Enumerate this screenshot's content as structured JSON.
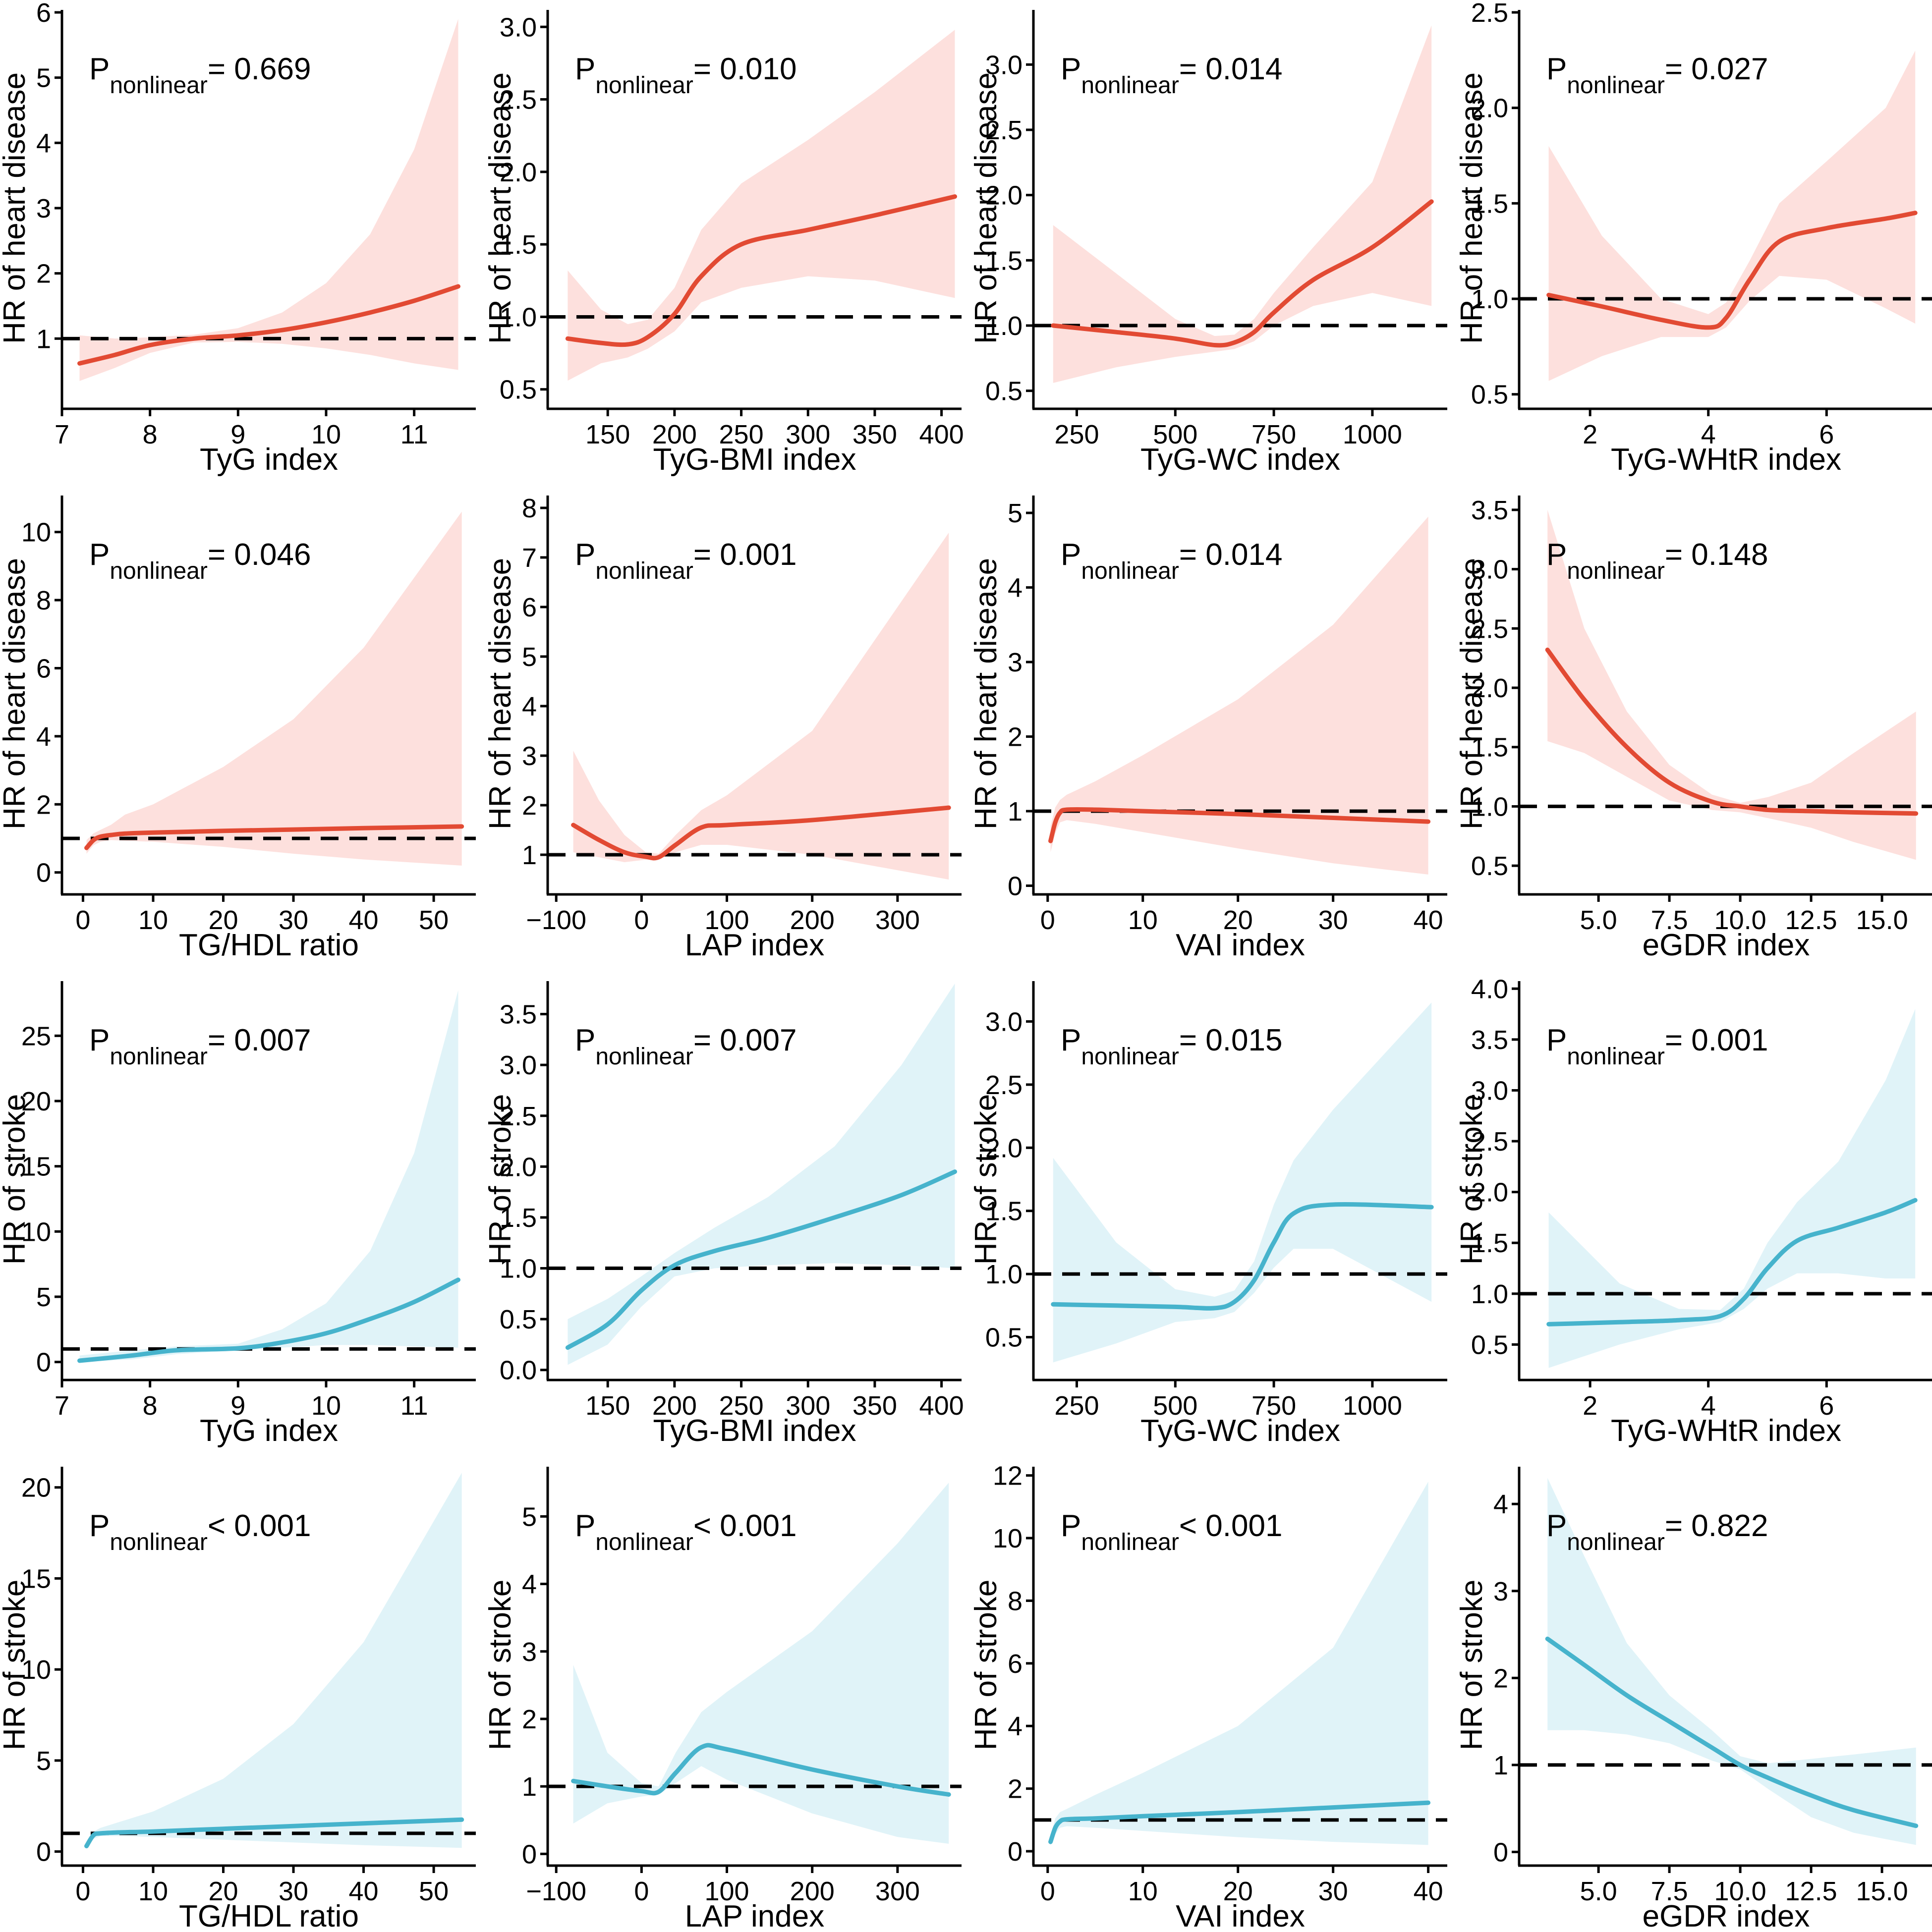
{
  "colors": {
    "heart_line": "#e24a33",
    "heart_band": "#fde0dd",
    "stroke_line": "#46b3cc",
    "stroke_band": "#e0f3f8",
    "axis": "#000000",
    "reference": "#000000"
  },
  "chart_data": [
    {
      "type": "line",
      "title": "",
      "outcome": "heart",
      "xlabel": "TyG index",
      "ylabel": "HR of heart disease",
      "p_label": "P",
      "p_sub": "nonlinear",
      "p_value": "=  0.669",
      "xlim": [
        7,
        11.7
      ],
      "ylim": [
        0,
        6
      ],
      "xticks": [
        7,
        8,
        9,
        10,
        11
      ],
      "yticks": [
        1,
        2,
        3,
        4,
        5,
        6
      ],
      "ref": 1,
      "x": [
        7.2,
        7.6,
        8.0,
        8.5,
        9.0,
        9.5,
        10.0,
        10.5,
        11.0,
        11.5
      ],
      "y": [
        0.62,
        0.75,
        0.9,
        1.0,
        1.05,
        1.13,
        1.25,
        1.4,
        1.58,
        1.8
      ],
      "lower": [
        0.35,
        0.55,
        0.78,
        0.94,
        0.95,
        0.92,
        0.85,
        0.75,
        0.62,
        0.52
      ],
      "upper": [
        1.05,
        1.0,
        1.02,
        1.06,
        1.16,
        1.4,
        1.85,
        2.6,
        3.9,
        5.9
      ]
    },
    {
      "type": "line",
      "title": "",
      "outcome": "heart",
      "xlabel": "TyG-BMI index",
      "ylabel": "HR of heart disease",
      "p_label": "P",
      "p_sub": "nonlinear",
      "p_value": "= 0.010",
      "xlim": [
        105,
        415
      ],
      "ylim": [
        0.4,
        3.1
      ],
      "xticks": [
        150,
        200,
        250,
        300,
        350,
        400
      ],
      "ytick_labels": [
        "0.5",
        "1.0",
        "1.5",
        "2.0",
        "2.5",
        "3.0"
      ],
      "yticks": [
        0.5,
        1.0,
        1.5,
        2.0,
        2.5,
        3.0
      ],
      "ref": 1,
      "x": [
        120,
        145,
        165,
        180,
        200,
        220,
        250,
        300,
        350,
        410
      ],
      "y": [
        0.85,
        0.82,
        0.81,
        0.86,
        1.02,
        1.28,
        1.5,
        1.6,
        1.7,
        1.83
      ],
      "lower": [
        0.56,
        0.68,
        0.72,
        0.78,
        0.9,
        1.1,
        1.2,
        1.28,
        1.25,
        1.13
      ],
      "upper": [
        1.32,
        1.05,
        0.95,
        0.98,
        1.2,
        1.6,
        1.92,
        2.22,
        2.55,
        2.98
      ]
    },
    {
      "type": "line",
      "title": "",
      "outcome": "heart",
      "xlabel": "TyG-WC index",
      "ylabel": "HR of heart disease",
      "p_label": "P",
      "p_sub": "nonlinear",
      "p_value": "= 0.014",
      "xlim": [
        140,
        1190
      ],
      "ylim": [
        0.4,
        3.4
      ],
      "xticks": [
        250,
        500,
        750,
        1000
      ],
      "ytick_labels": [
        "0.5",
        "1.0",
        "1.5",
        "2.0",
        "2.5",
        "3.0"
      ],
      "yticks": [
        0.5,
        1.0,
        1.5,
        2.0,
        2.5,
        3.0
      ],
      "ref": 1,
      "x": [
        190,
        350,
        500,
        600,
        650,
        700,
        750,
        850,
        1000,
        1150
      ],
      "y": [
        1.0,
        0.95,
        0.9,
        0.85,
        0.87,
        0.95,
        1.1,
        1.35,
        1.6,
        1.95
      ],
      "lower": [
        0.56,
        0.68,
        0.76,
        0.8,
        0.82,
        0.88,
        1.0,
        1.15,
        1.25,
        1.15
      ],
      "upper": [
        1.77,
        1.4,
        1.05,
        0.92,
        0.93,
        1.05,
        1.25,
        1.6,
        2.1,
        3.3
      ]
    },
    {
      "type": "line",
      "title": "",
      "outcome": "heart",
      "xlabel": "TyG-WHtR index",
      "ylabel": "HR of heart disease",
      "p_label": "P",
      "p_sub": "nonlinear",
      "p_value": "= 0.027",
      "xlim": [
        0.8,
        7.8
      ],
      "ylim": [
        0.45,
        2.5
      ],
      "xticks": [
        2,
        4,
        6
      ],
      "ytick_labels": [
        "0.5",
        "1.0",
        "1.5",
        "2.0",
        "2.5"
      ],
      "yticks": [
        0.5,
        1.0,
        1.5,
        2.0,
        2.5
      ],
      "ref": 1,
      "x": [
        1.3,
        2.2,
        3.2,
        4.0,
        4.3,
        4.7,
        5.2,
        6.0,
        7.0,
        7.5
      ],
      "y": [
        1.02,
        0.96,
        0.89,
        0.85,
        0.9,
        1.1,
        1.3,
        1.37,
        1.42,
        1.45
      ],
      "lower": [
        0.57,
        0.7,
        0.8,
        0.8,
        0.85,
        0.99,
        1.12,
        1.1,
        0.95,
        0.87
      ],
      "upper": [
        1.8,
        1.33,
        1.0,
        0.92,
        0.98,
        1.2,
        1.5,
        1.72,
        2.0,
        2.3
      ]
    },
    {
      "type": "line",
      "title": "",
      "outcome": "heart",
      "xlabel": "TG/HDL ratio",
      "ylabel": "HR of heart disease",
      "p_label": "P",
      "p_sub": "nonlinear",
      "p_value": "= 0.046",
      "xlim": [
        -3,
        56
      ],
      "ylim": [
        -0.5,
        11
      ],
      "xticks": [
        0,
        10,
        20,
        30,
        40,
        50
      ],
      "yticks": [
        0,
        2,
        4,
        6,
        8,
        10
      ],
      "ref": 1,
      "x": [
        0.5,
        1.5,
        2.5,
        4,
        6,
        10,
        20,
        30,
        40,
        54
      ],
      "y": [
        0.72,
        0.95,
        1.05,
        1.1,
        1.14,
        1.17,
        1.22,
        1.26,
        1.3,
        1.35
      ],
      "lower": [
        0.55,
        0.8,
        0.9,
        0.95,
        0.93,
        0.9,
        0.75,
        0.55,
        0.38,
        0.2
      ],
      "upper": [
        0.95,
        1.15,
        1.25,
        1.4,
        1.7,
        2.0,
        3.1,
        4.5,
        6.6,
        10.6
      ]
    },
    {
      "type": "line",
      "title": "",
      "outcome": "heart",
      "xlabel": "LAP index",
      "ylabel": "HR of heart disease",
      "p_label": "P",
      "p_sub": "nonlinear",
      "p_value": "= 0.001",
      "xlim": [
        -110,
        375
      ],
      "ylim": [
        0.3,
        8.2
      ],
      "xticks": [
        -100,
        0,
        100,
        200,
        300
      ],
      "xtick_labels": [
        "−100",
        "0",
        "100",
        "200",
        "300"
      ],
      "yticks": [
        1,
        2,
        3,
        4,
        5,
        6,
        7,
        8
      ],
      "ref": 1,
      "x": [
        -80,
        -50,
        -20,
        5,
        20,
        40,
        70,
        100,
        200,
        360
      ],
      "y": [
        1.6,
        1.3,
        1.05,
        0.96,
        0.95,
        1.2,
        1.55,
        1.6,
        1.7,
        1.95
      ],
      "lower": [
        1.05,
        0.95,
        0.85,
        0.9,
        0.91,
        1.05,
        1.2,
        1.2,
        1.0,
        0.5
      ],
      "upper": [
        3.1,
        2.1,
        1.4,
        1.05,
        1.02,
        1.4,
        1.9,
        2.2,
        3.5,
        7.5
      ]
    },
    {
      "type": "line",
      "title": "",
      "outcome": "heart",
      "xlabel": "VAI index",
      "ylabel": "HR of heart disease",
      "p_label": "P",
      "p_sub": "nonlinear",
      "p_value": "= 0.014",
      "xlim": [
        -1.5,
        42
      ],
      "ylim": [
        -0.05,
        5.2
      ],
      "xticks": [
        0,
        10,
        20,
        30,
        40
      ],
      "yticks": [
        0,
        1,
        2,
        3,
        4,
        5
      ],
      "ref": 1,
      "x": [
        0.3,
        0.8,
        1.3,
        2,
        5,
        10,
        20,
        30,
        40
      ],
      "y": [
        0.6,
        0.85,
        0.98,
        1.02,
        1.02,
        1.0,
        0.96,
        0.91,
        0.86
      ],
      "lower": [
        0.45,
        0.7,
        0.85,
        0.88,
        0.83,
        0.72,
        0.5,
        0.3,
        0.15
      ],
      "upper": [
        0.8,
        1.05,
        1.15,
        1.22,
        1.4,
        1.75,
        2.5,
        3.5,
        4.95
      ]
    },
    {
      "type": "line",
      "title": "",
      "outcome": "heart",
      "xlabel": "eGDR index",
      "ylabel": "HR of heart disease",
      "p_label": "P",
      "p_sub": "nonlinear",
      "p_value": "= 0.148",
      "xlim": [
        2.2,
        16.8
      ],
      "ylim": [
        0.3,
        3.6
      ],
      "xticks": [
        5.0,
        7.5,
        10.0,
        12.5,
        15.0
      ],
      "xtick_labels": [
        "5.0",
        "7.5",
        "10.0",
        "12.5",
        "15.0"
      ],
      "ytick_labels": [
        "0.5",
        "1.0",
        "1.5",
        "2.0",
        "2.5",
        "3.0",
        "3.5"
      ],
      "yticks": [
        0.5,
        1.0,
        1.5,
        2.0,
        2.5,
        3.0,
        3.5
      ],
      "ref": 1,
      "x": [
        3.2,
        4.5,
        6.0,
        7.5,
        9.0,
        10.0,
        11.0,
        12.5,
        14.0,
        16.2
      ],
      "y": [
        2.32,
        1.9,
        1.5,
        1.2,
        1.04,
        1.0,
        0.97,
        0.96,
        0.95,
        0.94
      ],
      "lower": [
        1.55,
        1.45,
        1.25,
        1.05,
        0.97,
        0.95,
        0.9,
        0.82,
        0.7,
        0.55
      ],
      "upper": [
        3.5,
        2.5,
        1.8,
        1.35,
        1.1,
        1.03,
        1.08,
        1.2,
        1.45,
        1.8
      ]
    },
    {
      "type": "line",
      "title": "",
      "outcome": "stroke",
      "xlabel": "TyG index",
      "ylabel": "HR of stroke",
      "p_label": "P",
      "p_sub": "nonlinear",
      "p_value": "= 0.007",
      "xlim": [
        7,
        11.7
      ],
      "ylim": [
        -1,
        29
      ],
      "xticks": [
        7,
        8,
        9,
        10,
        11
      ],
      "yticks": [
        0,
        5,
        10,
        15,
        20,
        25
      ],
      "ref": 1,
      "x": [
        7.2,
        7.8,
        8.3,
        9.0,
        9.5,
        10.0,
        10.5,
        11.0,
        11.5
      ],
      "y": [
        0.1,
        0.5,
        0.9,
        1.05,
        1.5,
        2.2,
        3.3,
        4.6,
        6.3
      ],
      "lower": [
        0.0,
        0.2,
        0.6,
        0.9,
        1.1,
        1.3,
        1.3,
        1.2,
        1.1
      ],
      "upper": [
        0.5,
        0.9,
        1.2,
        1.4,
        2.5,
        4.5,
        8.5,
        16,
        28.5
      ]
    },
    {
      "type": "line",
      "title": "",
      "outcome": "stroke",
      "xlabel": "TyG-BMI index",
      "ylabel": "HR of stroke",
      "p_label": "P",
      "p_sub": "nonlinear",
      "p_value": "= 0.007",
      "xlim": [
        105,
        415
      ],
      "ylim": [
        -0.05,
        3.8
      ],
      "xticks": [
        150,
        200,
        250,
        300,
        350,
        400
      ],
      "ytick_labels": [
        "0.0",
        "0.5",
        "1.0",
        "1.5",
        "2.0",
        "2.5",
        "3.0",
        "3.5"
      ],
      "yticks": [
        0,
        0.5,
        1.0,
        1.5,
        2.0,
        2.5,
        3.0,
        3.5
      ],
      "ref": 1,
      "x": [
        120,
        150,
        175,
        200,
        230,
        270,
        320,
        370,
        410
      ],
      "y": [
        0.22,
        0.45,
        0.78,
        1.03,
        1.17,
        1.3,
        1.5,
        1.72,
        1.95
      ],
      "lower": [
        0.05,
        0.25,
        0.62,
        0.92,
        1.0,
        1.03,
        1.05,
        1.03,
        1.0
      ],
      "upper": [
        0.5,
        0.7,
        0.92,
        1.15,
        1.4,
        1.7,
        2.2,
        3.0,
        3.8
      ]
    },
    {
      "type": "line",
      "title": "",
      "outcome": "stroke",
      "xlabel": "TyG-WC index",
      "ylabel": "HR of stroke",
      "p_label": "P",
      "p_sub": "nonlinear",
      "p_value": "=  0.015",
      "xlim": [
        140,
        1190
      ],
      "ylim": [
        0.2,
        3.3
      ],
      "xticks": [
        250,
        500,
        750,
        1000
      ],
      "ytick_labels": [
        "0.5",
        "1.0",
        "1.5",
        "2.0",
        "2.5",
        "3.0"
      ],
      "yticks": [
        0.5,
        1.0,
        1.5,
        2.0,
        2.5,
        3.0
      ],
      "ref": 1,
      "x": [
        190,
        350,
        500,
        600,
        650,
        700,
        750,
        800,
        900,
        1150
      ],
      "y": [
        0.76,
        0.75,
        0.74,
        0.73,
        0.78,
        0.95,
        1.25,
        1.48,
        1.55,
        1.53
      ],
      "lower": [
        0.3,
        0.45,
        0.62,
        0.65,
        0.7,
        0.85,
        1.05,
        1.2,
        1.2,
        0.78
      ],
      "upper": [
        1.92,
        1.25,
        0.88,
        0.82,
        0.87,
        1.1,
        1.55,
        1.9,
        2.3,
        3.15
      ]
    },
    {
      "type": "line",
      "title": "",
      "outcome": "stroke",
      "xlabel": "TyG-WHtR index",
      "ylabel": "HR of stroke",
      "p_label": "P",
      "p_sub": "nonlinear",
      "p_value": "= 0.001",
      "xlim": [
        0.8,
        7.8
      ],
      "ylim": [
        0.2,
        4.05
      ],
      "xticks": [
        2,
        4,
        6
      ],
      "ytick_labels": [
        "0.5",
        "1.0",
        "1.5",
        "2.0",
        "2.5",
        "3.0",
        "3.5",
        "4.0"
      ],
      "yticks": [
        0.5,
        1.0,
        1.5,
        2.0,
        2.5,
        3.0,
        3.5,
        4.0
      ],
      "ref": 1,
      "x": [
        1.3,
        2.5,
        3.5,
        4.2,
        4.6,
        5.0,
        5.5,
        6.2,
        7.0,
        7.5
      ],
      "y": [
        0.7,
        0.72,
        0.74,
        0.78,
        0.95,
        1.25,
        1.52,
        1.65,
        1.8,
        1.92
      ],
      "lower": [
        0.27,
        0.5,
        0.65,
        0.72,
        0.85,
        1.05,
        1.2,
        1.2,
        1.15,
        1.15
      ],
      "upper": [
        1.8,
        1.1,
        0.85,
        0.84,
        1.05,
        1.5,
        1.9,
        2.3,
        3.1,
        3.8
      ]
    },
    {
      "type": "line",
      "title": "",
      "outcome": "stroke",
      "xlabel": "TG/HDL ratio",
      "ylabel": "HR of stroke",
      "p_label": "P",
      "p_sub": "nonlinear",
      "p_value": "< 0.001",
      "xlim": [
        -3,
        56
      ],
      "ylim": [
        -0.5,
        21
      ],
      "xticks": [
        0,
        10,
        20,
        30,
        40,
        50
      ],
      "yticks": [
        0,
        5,
        10,
        15,
        20
      ],
      "ref": 1,
      "x": [
        0.5,
        1.5,
        2.5,
        5,
        10,
        20,
        30,
        40,
        54
      ],
      "y": [
        0.3,
        0.9,
        1.0,
        1.05,
        1.1,
        1.25,
        1.4,
        1.55,
        1.75
      ],
      "lower": [
        0.2,
        0.7,
        0.85,
        0.85,
        0.8,
        0.65,
        0.5,
        0.35,
        0.2
      ],
      "upper": [
        0.5,
        1.1,
        1.3,
        1.6,
        2.2,
        4.0,
        7.0,
        11.5,
        20.8
      ]
    },
    {
      "type": "line",
      "title": "",
      "outcome": "stroke",
      "xlabel": "LAP index",
      "ylabel": "HR of stroke",
      "p_label": "P",
      "p_sub": "nonlinear",
      "p_value": "< 0.001",
      "xlim": [
        -110,
        375
      ],
      "ylim": [
        -0.1,
        5.7
      ],
      "xticks": [
        -100,
        0,
        100,
        200,
        300
      ],
      "xtick_labels": [
        "−100",
        "0",
        "100",
        "200",
        "300"
      ],
      "yticks": [
        0,
        1,
        2,
        3,
        4,
        5
      ],
      "ref": 1,
      "x": [
        -80,
        -40,
        0,
        20,
        40,
        70,
        100,
        200,
        300,
        360
      ],
      "y": [
        1.08,
        1.0,
        0.93,
        0.92,
        1.2,
        1.58,
        1.55,
        1.25,
        1.0,
        0.88
      ],
      "lower": [
        0.45,
        0.75,
        0.85,
        0.88,
        1.05,
        1.3,
        1.1,
        0.6,
        0.25,
        0.15
      ],
      "upper": [
        2.8,
        1.5,
        1.05,
        1.0,
        1.5,
        2.1,
        2.4,
        3.3,
        4.6,
        5.5
      ]
    },
    {
      "type": "line",
      "title": "",
      "outcome": "stroke",
      "xlabel": "VAI index",
      "ylabel": "HR of stroke",
      "p_label": "P",
      "p_sub": "nonlinear",
      "p_value": "< 0.001",
      "xlim": [
        -1.5,
        42
      ],
      "ylim": [
        -0.3,
        12.2
      ],
      "xticks": [
        0,
        10,
        20,
        30,
        40
      ],
      "yticks": [
        0,
        2,
        4,
        6,
        8,
        10,
        12
      ],
      "ref": 1,
      "x": [
        0.3,
        0.8,
        1.3,
        2,
        5,
        10,
        20,
        30,
        40
      ],
      "y": [
        0.3,
        0.75,
        0.95,
        1.02,
        1.05,
        1.12,
        1.25,
        1.4,
        1.55
      ],
      "lower": [
        0.2,
        0.55,
        0.75,
        0.8,
        0.75,
        0.65,
        0.45,
        0.3,
        0.2
      ],
      "upper": [
        0.5,
        1.05,
        1.25,
        1.35,
        1.8,
        2.5,
        4.0,
        6.5,
        11.8
      ]
    },
    {
      "type": "line",
      "title": "",
      "outcome": "stroke",
      "xlabel": "eGDR index",
      "ylabel": "HR of stroke",
      "p_label": "P",
      "p_sub": "nonlinear",
      "p_value": "=  0.822",
      "xlim": [
        2.2,
        16.8
      ],
      "ylim": [
        -0.1,
        4.4
      ],
      "xticks": [
        5.0,
        7.5,
        10.0,
        12.5,
        15.0
      ],
      "xtick_labels": [
        "5.0",
        "7.5",
        "10.0",
        "12.5",
        "15.0"
      ],
      "yticks": [
        0,
        1,
        2,
        3,
        4
      ],
      "ref": 1,
      "x": [
        3.2,
        4.5,
        6.0,
        7.5,
        9.0,
        10.0,
        11.0,
        12.5,
        14.0,
        16.2
      ],
      "y": [
        2.45,
        2.15,
        1.8,
        1.5,
        1.2,
        1.0,
        0.85,
        0.65,
        0.48,
        0.3
      ],
      "lower": [
        1.4,
        1.4,
        1.35,
        1.25,
        1.05,
        0.95,
        0.72,
        0.4,
        0.22,
        0.08
      ],
      "upper": [
        4.3,
        3.4,
        2.4,
        1.8,
        1.4,
        1.1,
        1.02,
        1.07,
        1.12,
        1.2
      ]
    }
  ]
}
